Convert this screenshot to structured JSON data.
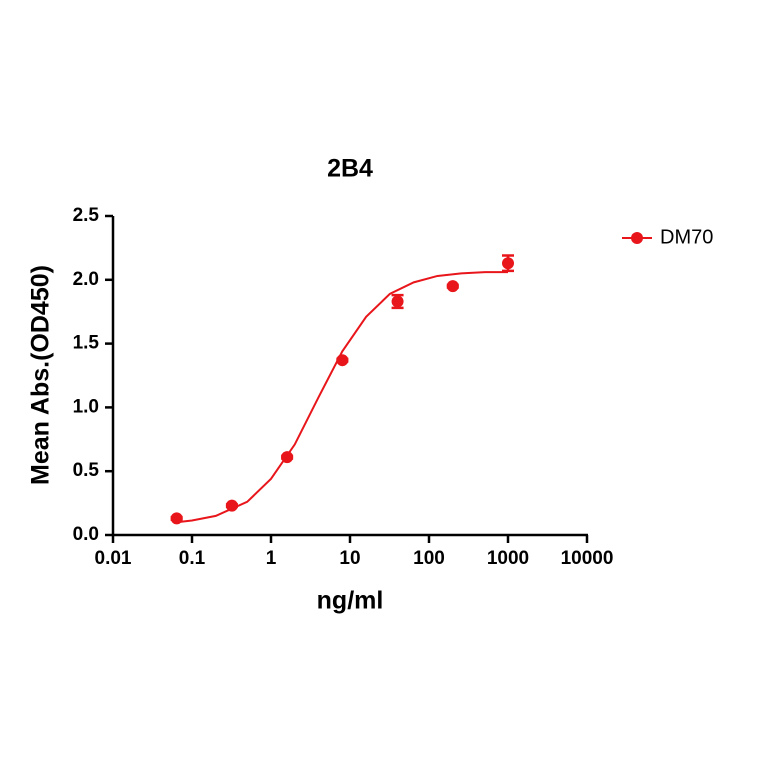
{
  "chart_data": {
    "type": "scatter",
    "title": "2B4",
    "x_label": "ng/ml",
    "y_label": "Mean Abs.(OD450)",
    "xscale": "log",
    "xlim": [
      0.01,
      10000
    ],
    "xticks": [
      0.01,
      0.1,
      1,
      10,
      100,
      1000,
      10000
    ],
    "ylim": [
      0,
      2.5
    ],
    "yticks": [
      {
        "value": 0,
        "label": "0.0"
      },
      {
        "value": 0.5,
        "label": "0.5"
      },
      {
        "value": 1,
        "label": "1.0"
      },
      {
        "value": 1.5,
        "label": "1.5"
      },
      {
        "value": 2,
        "label": "2.0"
      },
      {
        "value": 2.5,
        "label": "2.5"
      }
    ],
    "legend": "top-right",
    "series": [
      {
        "name": "DM70",
        "color": "#e8161b",
        "x": [
          0.064,
          0.32,
          1.6,
          8,
          40,
          200,
          1000
        ],
        "values": [
          0.13,
          0.23,
          0.61,
          1.37,
          1.83,
          1.95,
          2.13
        ],
        "errors": [
          0.01,
          0.01,
          0.01,
          0.01,
          0.05,
          0.01,
          0.06
        ]
      }
    ],
    "curve": {
      "x": [
        0.064,
        0.1,
        0.2,
        0.5,
        1,
        2,
        4,
        8,
        16,
        32,
        64,
        128,
        256,
        512,
        1000
      ],
      "values": [
        0.1,
        0.114,
        0.15,
        0.26,
        0.44,
        0.71,
        1.08,
        1.44,
        1.71,
        1.89,
        1.98,
        2.03,
        2.05,
        2.06,
        2.06
      ]
    }
  }
}
